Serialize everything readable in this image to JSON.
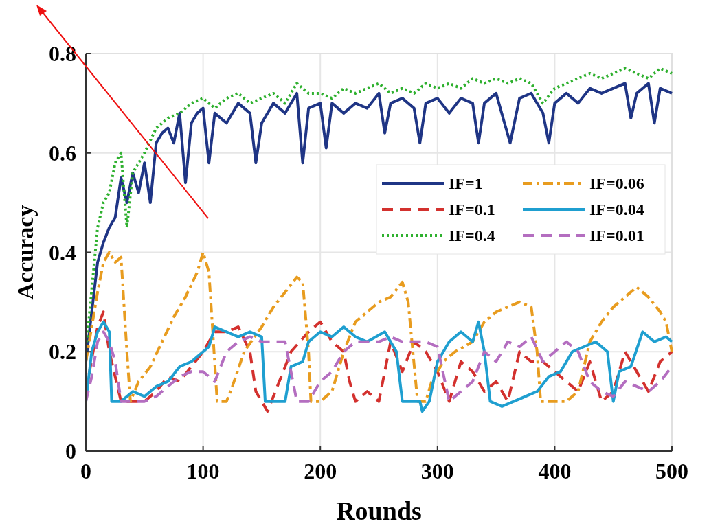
{
  "chart_data": {
    "type": "line",
    "xlabel": "Rounds",
    "ylabel": "Accuracy",
    "xlim": [
      0,
      500
    ],
    "xticks": [
      0,
      100,
      200,
      300,
      400,
      500
    ],
    "ylim": [
      0,
      0.8
    ],
    "yticks": [
      0,
      0.2,
      0.4,
      0.6,
      0.8
    ],
    "grid": true,
    "legend": "right",
    "series": [
      {
        "name": "IF=1",
        "color": "#1f3585",
        "line_style": "solid",
        "x": [
          0,
          10,
          15,
          20,
          25,
          30,
          35,
          40,
          45,
          50,
          55,
          60,
          65,
          70,
          75,
          80,
          85,
          90,
          95,
          100,
          105,
          110,
          120,
          130,
          140,
          145,
          150,
          160,
          170,
          180,
          185,
          190,
          200,
          205,
          210,
          220,
          230,
          240,
          250,
          255,
          260,
          270,
          280,
          285,
          290,
          300,
          310,
          320,
          330,
          335,
          340,
          350,
          362,
          370,
          380,
          390,
          395,
          400,
          410,
          420,
          430,
          440,
          450,
          460,
          465,
          470,
          480,
          485,
          490,
          500
        ],
        "values": [
          0.18,
          0.38,
          0.42,
          0.45,
          0.47,
          0.55,
          0.5,
          0.56,
          0.52,
          0.58,
          0.5,
          0.62,
          0.64,
          0.65,
          0.62,
          0.68,
          0.54,
          0.66,
          0.68,
          0.69,
          0.58,
          0.68,
          0.66,
          0.7,
          0.68,
          0.58,
          0.66,
          0.7,
          0.68,
          0.72,
          0.58,
          0.69,
          0.7,
          0.61,
          0.7,
          0.68,
          0.7,
          0.69,
          0.72,
          0.64,
          0.7,
          0.71,
          0.69,
          0.62,
          0.7,
          0.71,
          0.68,
          0.71,
          0.7,
          0.62,
          0.7,
          0.72,
          0.62,
          0.71,
          0.72,
          0.68,
          0.62,
          0.7,
          0.72,
          0.7,
          0.73,
          0.72,
          0.73,
          0.74,
          0.67,
          0.72,
          0.74,
          0.66,
          0.73,
          0.72
        ]
      },
      {
        "name": "IF=0.1",
        "color": "#d3312e",
        "line_style": "dashed",
        "x": [
          0,
          10,
          15,
          20,
          25,
          30,
          40,
          50,
          60,
          70,
          80,
          90,
          100,
          110,
          120,
          130,
          140,
          145,
          150,
          155,
          165,
          175,
          190,
          200,
          210,
          220,
          225,
          230,
          240,
          250,
          260,
          270,
          280,
          290,
          300,
          310,
          320,
          330,
          340,
          350,
          360,
          370,
          380,
          390,
          400,
          410,
          420,
          430,
          440,
          450,
          460,
          470,
          480,
          490,
          500
        ],
        "values": [
          0.12,
          0.25,
          0.28,
          0.2,
          0.15,
          0.1,
          0.1,
          0.1,
          0.12,
          0.15,
          0.14,
          0.17,
          0.2,
          0.24,
          0.24,
          0.25,
          0.2,
          0.12,
          0.1,
          0.08,
          0.14,
          0.2,
          0.24,
          0.26,
          0.22,
          0.2,
          0.14,
          0.1,
          0.12,
          0.1,
          0.22,
          0.16,
          0.22,
          0.2,
          0.16,
          0.1,
          0.18,
          0.16,
          0.12,
          0.14,
          0.1,
          0.2,
          0.18,
          0.18,
          0.16,
          0.14,
          0.12,
          0.18,
          0.1,
          0.12,
          0.2,
          0.16,
          0.12,
          0.18,
          0.2
        ]
      },
      {
        "name": "IF=0.4",
        "color": "#2eb02e",
        "line_style": "dotted",
        "x": [
          0,
          10,
          15,
          20,
          25,
          30,
          35,
          40,
          50,
          60,
          70,
          80,
          90,
          100,
          110,
          120,
          130,
          140,
          150,
          160,
          170,
          180,
          190,
          200,
          210,
          220,
          230,
          240,
          250,
          260,
          270,
          280,
          290,
          300,
          310,
          320,
          330,
          340,
          350,
          360,
          370,
          380,
          390,
          400,
          410,
          420,
          430,
          440,
          450,
          460,
          470,
          480,
          490,
          500
        ],
        "values": [
          0.2,
          0.45,
          0.5,
          0.52,
          0.58,
          0.6,
          0.45,
          0.56,
          0.6,
          0.65,
          0.67,
          0.68,
          0.7,
          0.71,
          0.69,
          0.71,
          0.72,
          0.7,
          0.71,
          0.72,
          0.7,
          0.74,
          0.72,
          0.72,
          0.71,
          0.73,
          0.72,
          0.73,
          0.74,
          0.72,
          0.73,
          0.72,
          0.74,
          0.73,
          0.74,
          0.73,
          0.75,
          0.74,
          0.75,
          0.74,
          0.75,
          0.74,
          0.7,
          0.73,
          0.74,
          0.75,
          0.76,
          0.75,
          0.76,
          0.77,
          0.76,
          0.75,
          0.77,
          0.76
        ]
      },
      {
        "name": "IF=0.06",
        "color": "#e89c1f",
        "line_style": "dashdot",
        "x": [
          0,
          10,
          15,
          20,
          25,
          30,
          35,
          38,
          45,
          55,
          65,
          75,
          85,
          95,
          100,
          105,
          108,
          112,
          120,
          125,
          135,
          150,
          160,
          170,
          180,
          185,
          190,
          192,
          200,
          210,
          220,
          230,
          240,
          250,
          260,
          270,
          275,
          283,
          290,
          295,
          305,
          315,
          330,
          340,
          350,
          360,
          370,
          380,
          385,
          388,
          400,
          410,
          420,
          430,
          440,
          450,
          460,
          470,
          480,
          490,
          495,
          500
        ],
        "values": [
          0.18,
          0.32,
          0.38,
          0.4,
          0.38,
          0.39,
          0.2,
          0.1,
          0.14,
          0.17,
          0.22,
          0.27,
          0.31,
          0.36,
          0.4,
          0.36,
          0.25,
          0.1,
          0.1,
          0.13,
          0.2,
          0.25,
          0.29,
          0.32,
          0.35,
          0.34,
          0.2,
          0.1,
          0.1,
          0.12,
          0.2,
          0.26,
          0.28,
          0.3,
          0.31,
          0.34,
          0.3,
          0.1,
          0.1,
          0.14,
          0.18,
          0.2,
          0.22,
          0.26,
          0.28,
          0.29,
          0.3,
          0.29,
          0.2,
          0.1,
          0.1,
          0.1,
          0.12,
          0.22,
          0.26,
          0.29,
          0.31,
          0.33,
          0.31,
          0.28,
          0.26,
          0.2
        ]
      },
      {
        "name": "IF=0.04",
        "color": "#1f9fd0",
        "line_style": "solid",
        "x": [
          0,
          5,
          10,
          15,
          20,
          22,
          30,
          40,
          50,
          60,
          70,
          80,
          90,
          100,
          105,
          110,
          120,
          130,
          140,
          150,
          153,
          170,
          175,
          185,
          190,
          200,
          210,
          220,
          230,
          240,
          255,
          265,
          270,
          285,
          287,
          293,
          300,
          310,
          320,
          330,
          335,
          340,
          345,
          355,
          365,
          375,
          385,
          395,
          405,
          415,
          425,
          435,
          445,
          450,
          455,
          465,
          475,
          485,
          495,
          500
        ],
        "values": [
          0.1,
          0.2,
          0.24,
          0.26,
          0.24,
          0.1,
          0.1,
          0.12,
          0.11,
          0.13,
          0.14,
          0.17,
          0.18,
          0.2,
          0.21,
          0.25,
          0.24,
          0.23,
          0.24,
          0.23,
          0.1,
          0.1,
          0.17,
          0.18,
          0.22,
          0.24,
          0.23,
          0.25,
          0.23,
          0.22,
          0.24,
          0.2,
          0.1,
          0.1,
          0.08,
          0.1,
          0.18,
          0.22,
          0.24,
          0.22,
          0.26,
          0.2,
          0.1,
          0.09,
          0.1,
          0.11,
          0.12,
          0.15,
          0.16,
          0.2,
          0.21,
          0.22,
          0.2,
          0.1,
          0.16,
          0.17,
          0.24,
          0.22,
          0.23,
          0.22
        ]
      },
      {
        "name": "IF=0.01",
        "color": "#b46ec0",
        "line_style": "dashed",
        "x": [
          0,
          5,
          10,
          15,
          20,
          25,
          30,
          40,
          50,
          60,
          70,
          80,
          90,
          100,
          110,
          120,
          130,
          140,
          150,
          160,
          170,
          180,
          190,
          200,
          210,
          220,
          230,
          240,
          250,
          260,
          270,
          280,
          290,
          300,
          310,
          320,
          330,
          340,
          350,
          360,
          370,
          380,
          390,
          400,
          410,
          420,
          430,
          440,
          450,
          460,
          470,
          480,
          490,
          500
        ],
        "values": [
          0.1,
          0.15,
          0.22,
          0.24,
          0.22,
          0.18,
          0.1,
          0.1,
          0.1,
          0.11,
          0.13,
          0.15,
          0.16,
          0.16,
          0.14,
          0.2,
          0.22,
          0.23,
          0.22,
          0.22,
          0.22,
          0.1,
          0.1,
          0.14,
          0.16,
          0.2,
          0.22,
          0.22,
          0.22,
          0.23,
          0.22,
          0.22,
          0.22,
          0.21,
          0.1,
          0.12,
          0.14,
          0.2,
          0.18,
          0.22,
          0.21,
          0.23,
          0.18,
          0.2,
          0.22,
          0.2,
          0.14,
          0.12,
          0.11,
          0.14,
          0.13,
          0.12,
          0.14,
          0.17
        ]
      }
    ]
  }
}
